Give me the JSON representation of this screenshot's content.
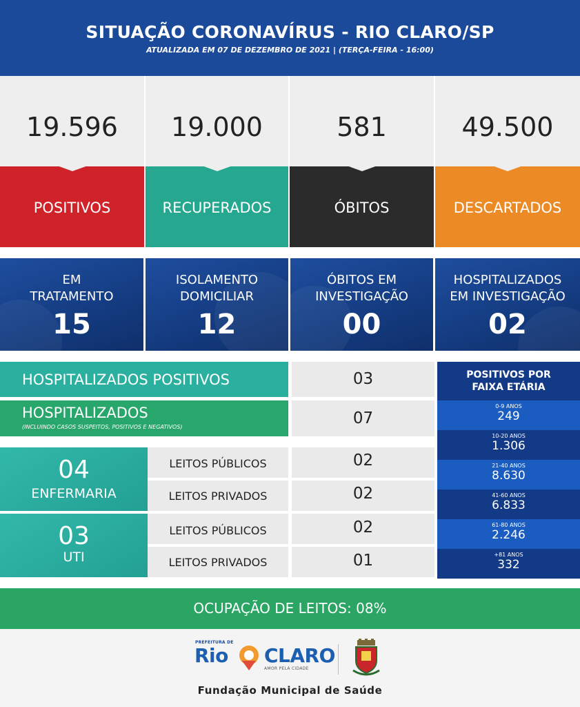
{
  "header": {
    "title": "SITUAÇÃO CORONAVÍRUS - RIO CLARO/SP",
    "subtitle": "ATUALIZADA EM 07 DE DEZEMBRO DE 2021 | (TERÇA-FEIRA - 16:00)"
  },
  "stats": [
    {
      "value": "19.596",
      "label": "POSITIVOS",
      "color": "#cf2229"
    },
    {
      "value": "19.000",
      "label": "RECUPERADOS",
      "color": "#26a78f"
    },
    {
      "value": "581",
      "label": "ÓBITOS",
      "color": "#2b2b2b"
    },
    {
      "value": "49.500",
      "label": "DESCARTADOS",
      "color": "#ec8a26"
    }
  ],
  "status": [
    {
      "label_line1": "EM",
      "label_line2": "TRATAMENTO",
      "value": "15"
    },
    {
      "label_line1": "ISOLAMENTO",
      "label_line2": "DOMICILIAR",
      "value": "12"
    },
    {
      "label_line1": "ÓBITOS EM",
      "label_line2": "INVESTIGAÇÃO",
      "value": "00"
    },
    {
      "label_line1": "HOSPITALIZADOS",
      "label_line2": "EM INVESTIGAÇÃO",
      "value": "02"
    }
  ],
  "hospital": {
    "positivos_label": "HOSPITALIZADOS POSITIVOS",
    "positivos_value": "03",
    "total_label": "HOSPITALIZADOS",
    "total_sublabel": "(INCLUINDO CASOS SUSPEITOS, POSITIVOS E NEGATIVOS)",
    "total_value": "07",
    "enfermaria": {
      "value": "04",
      "label": "ENFERMARIA",
      "publicos_label": "LEITOS PÚBLICOS",
      "publicos_value": "02",
      "privados_label": "LEITOS PRIVADOS",
      "privados_value": "02"
    },
    "uti": {
      "value": "03",
      "label": "UTI",
      "publicos_label": "LEITOS PÚBLICOS",
      "publicos_value": "02",
      "privados_label": "LEITOS PRIVADOS",
      "privados_value": "01"
    }
  },
  "age": {
    "title_line1": "POSITIVOS POR",
    "title_line2": "FAIXA ETÁRIA",
    "groups": [
      {
        "range": "0-9 ANOS",
        "value": "249"
      },
      {
        "range": "10-20 ANOS",
        "value": "1.306"
      },
      {
        "range": "21-40 ANOS",
        "value": "8.630"
      },
      {
        "range": "41-60 ANOS",
        "value": "6.833"
      },
      {
        "range": "61-80 ANOS",
        "value": "2.246"
      },
      {
        "range": "+81 ANOS",
        "value": "332"
      }
    ]
  },
  "occupancy": "OCUPAÇÃO DE LEITOS: 08%",
  "footer": {
    "logo_prefix": "PREFEITURA DE",
    "logo_rio": "Rio",
    "logo_claro": "CLARO",
    "logo_tagline": "AMOR PELA CIDADE",
    "org": "Fundação Municipal de Saúde"
  }
}
